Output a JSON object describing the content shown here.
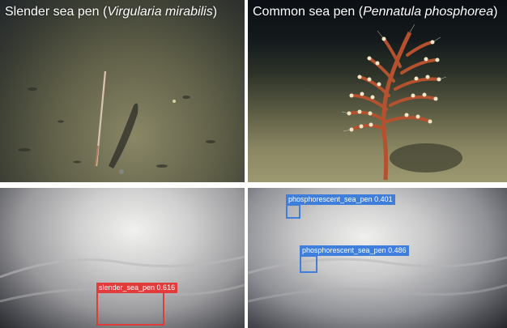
{
  "panels": {
    "top_left": {
      "caption_prefix": "Slender sea pen (",
      "caption_species": "Virgularia mirabilis",
      "caption_suffix": ")"
    },
    "top_right": {
      "caption_prefix": "Common sea pen (",
      "caption_species": "Pennatula phosphorea",
      "caption_suffix": ")"
    },
    "bottom_left": {
      "detections": [
        {
          "label": "slender_sea_pen 0.616",
          "color": "#e23b3b"
        }
      ]
    },
    "bottom_right": {
      "detections": [
        {
          "label": "phosphorescent_sea_pen 0.401",
          "color": "#3f7fdb"
        },
        {
          "label": "phosphorescent_sea_pen 0.486",
          "color": "#3f7fdb"
        }
      ]
    }
  }
}
